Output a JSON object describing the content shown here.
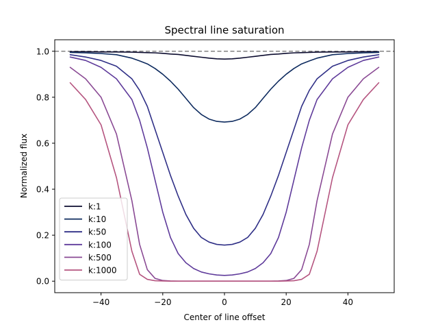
{
  "chart_data": {
    "type": "line",
    "title": "Spectral line saturation",
    "xlabel": "Center of line offset",
    "ylabel": "Normalized flux",
    "xlim": [
      -55,
      55
    ],
    "ylim": [
      -0.05,
      1.05
    ],
    "xticks": [
      -40,
      -20,
      0,
      20,
      40
    ],
    "xtick_labels": [
      "−40",
      "−20",
      "0",
      "20",
      "40"
    ],
    "yticks": [
      0.0,
      0.2,
      0.4,
      0.6,
      0.8,
      1.0
    ],
    "ytick_labels": [
      "0.0",
      "0.2",
      "0.4",
      "0.6",
      "0.8",
      "1.0"
    ],
    "grid": false,
    "legend_position": "lower-left",
    "reference_line": {
      "y": 1.0,
      "style": "dashed",
      "color": "#808080"
    },
    "x": [
      -50,
      -45,
      -40,
      -35,
      -30,
      -27.5,
      -25,
      -22.5,
      -20,
      -17.5,
      -15,
      -12.5,
      -10,
      -7.5,
      -5,
      -2.5,
      0,
      2.5,
      5,
      7.5,
      10,
      12.5,
      15,
      17.5,
      20,
      22.5,
      25,
      27.5,
      30,
      35,
      40,
      45,
      50
    ],
    "series": [
      {
        "name": "k:1",
        "color": "#0b0b2e",
        "values": [
          0.998,
          0.998,
          0.997,
          0.997,
          0.996,
          0.995,
          0.994,
          0.993,
          0.991,
          0.988,
          0.986,
          0.982,
          0.978,
          0.974,
          0.97,
          0.967,
          0.966,
          0.967,
          0.97,
          0.974,
          0.978,
          0.982,
          0.986,
          0.988,
          0.991,
          0.993,
          0.994,
          0.995,
          0.996,
          0.997,
          0.997,
          0.998,
          0.998
        ]
      },
      {
        "name": "k:10",
        "color": "#0d2a5e",
        "values": [
          0.995,
          0.993,
          0.99,
          0.985,
          0.97,
          0.958,
          0.945,
          0.925,
          0.9,
          0.87,
          0.835,
          0.795,
          0.755,
          0.725,
          0.705,
          0.695,
          0.692,
          0.695,
          0.705,
          0.725,
          0.755,
          0.795,
          0.835,
          0.87,
          0.9,
          0.925,
          0.945,
          0.958,
          0.97,
          0.985,
          0.99,
          0.993,
          0.995
        ]
      },
      {
        "name": "k:50",
        "color": "#2f2f86",
        "values": [
          0.985,
          0.975,
          0.96,
          0.935,
          0.88,
          0.83,
          0.76,
          0.66,
          0.56,
          0.46,
          0.37,
          0.29,
          0.23,
          0.19,
          0.17,
          0.16,
          0.157,
          0.16,
          0.17,
          0.19,
          0.23,
          0.29,
          0.37,
          0.46,
          0.56,
          0.66,
          0.76,
          0.83,
          0.88,
          0.935,
          0.96,
          0.975,
          0.985
        ]
      },
      {
        "name": "k:100",
        "color": "#5e3a9a",
        "values": [
          0.975,
          0.96,
          0.93,
          0.88,
          0.79,
          0.7,
          0.58,
          0.44,
          0.3,
          0.19,
          0.12,
          0.08,
          0.055,
          0.04,
          0.032,
          0.027,
          0.025,
          0.027,
          0.032,
          0.04,
          0.055,
          0.08,
          0.12,
          0.19,
          0.3,
          0.44,
          0.58,
          0.7,
          0.79,
          0.88,
          0.93,
          0.96,
          0.975
        ]
      },
      {
        "name": "k:500",
        "color": "#8a4a94",
        "values": [
          0.93,
          0.88,
          0.8,
          0.64,
          0.35,
          0.16,
          0.05,
          0.012,
          0.003,
          0.001,
          0.0,
          0.0,
          0.0,
          0.0,
          0.0,
          0.0,
          0.0,
          0.0,
          0.0,
          0.0,
          0.0,
          0.0,
          0.0,
          0.001,
          0.003,
          0.012,
          0.05,
          0.16,
          0.35,
          0.64,
          0.8,
          0.88,
          0.93
        ]
      },
      {
        "name": "k:1000",
        "color": "#b5547f",
        "values": [
          0.863,
          0.79,
          0.68,
          0.45,
          0.13,
          0.03,
          0.008,
          0.002,
          0.001,
          0.0,
          0.0,
          0.0,
          0.0,
          0.0,
          0.0,
          0.0,
          0.0,
          0.0,
          0.0,
          0.0,
          0.0,
          0.0,
          0.0,
          0.0,
          0.001,
          0.002,
          0.008,
          0.03,
          0.13,
          0.45,
          0.68,
          0.79,
          0.863
        ]
      }
    ]
  }
}
